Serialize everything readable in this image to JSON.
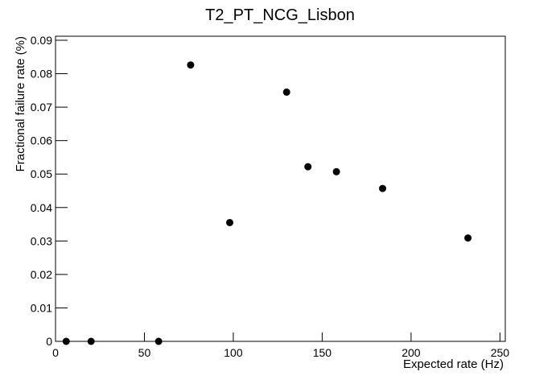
{
  "chart_data": {
    "type": "scatter",
    "title": "T2_PT_NCG_Lisbon",
    "x_label": "Expected rate (Hz)",
    "y_label": "Fractional failure rate (%)",
    "x": [
      6,
      20,
      58,
      76,
      98,
      130,
      142,
      158,
      184,
      232
    ],
    "values": [
      0,
      0,
      0,
      0.0826,
      0.0355,
      0.0745,
      0.0522,
      0.0507,
      0.0457,
      0.0309
    ],
    "color": "#000000",
    "xlim": [
      0,
      253
    ],
    "xticks": [
      0,
      50,
      100,
      150,
      200,
      250
    ],
    "ylim": [
      0,
      0.0912
    ],
    "yticks": [
      0,
      0.01,
      0.02,
      0.03,
      0.04,
      0.05,
      0.06,
      0.07,
      0.08,
      0.09
    ],
    "grid": false
  }
}
